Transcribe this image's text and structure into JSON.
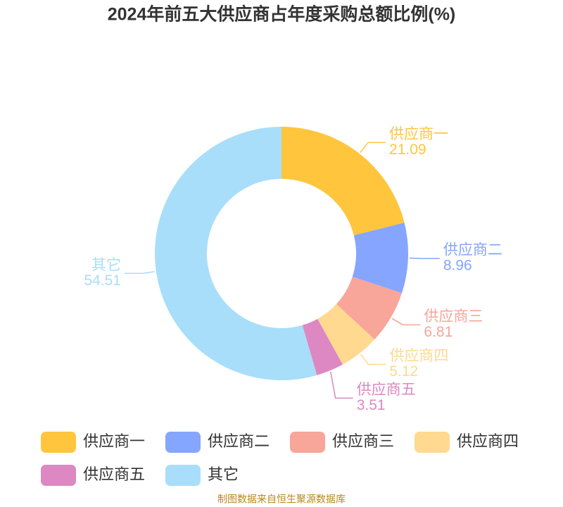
{
  "chart_data": {
    "type": "donut",
    "title": "2024年前五大供应商占年度采购总额比例(%)",
    "categories": [
      "供应商一",
      "供应商二",
      "供应商三",
      "供应商四",
      "供应商五",
      "其它"
    ],
    "values": [
      21.09,
      8.96,
      6.81,
      5.12,
      3.51,
      54.51
    ],
    "colors": [
      "#ffc53d",
      "#85a5ff",
      "#f8a59a",
      "#ffd98f",
      "#dd88c2",
      "#a8defa"
    ],
    "legend": "bottom"
  },
  "footer": {
    "source": "制图数据来自恒生聚源数据库"
  }
}
